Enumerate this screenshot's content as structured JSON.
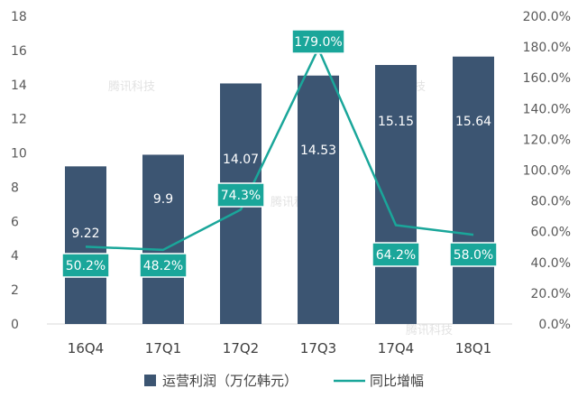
{
  "chart_data": {
    "type": "bar",
    "categories": [
      "16Q4",
      "17Q1",
      "17Q2",
      "17Q3",
      "17Q4",
      "18Q1"
    ],
    "series": [
      {
        "name": "运营利润（万亿韩元）",
        "type": "bar",
        "axis": "left",
        "values": [
          9.22,
          9.9,
          14.07,
          14.53,
          15.15,
          15.64
        ],
        "labels": [
          "9.22",
          "9.9",
          "14.07",
          "14.53",
          "15.15",
          "15.64"
        ],
        "color": "#3c5572"
      },
      {
        "name": "同比增幅",
        "type": "line",
        "axis": "right",
        "values": [
          50.2,
          48.2,
          74.3,
          179.0,
          64.2,
          58.0
        ],
        "labels": [
          "50.2%",
          "48.2%",
          "74.3%",
          "179.0%",
          "64.2%",
          "58.0%"
        ],
        "color": "#1aa69a"
      }
    ],
    "y_left": {
      "range": [
        0,
        18
      ],
      "ticks": [
        "0",
        "2",
        "4",
        "6",
        "8",
        "10",
        "12",
        "14",
        "16",
        "18"
      ]
    },
    "y_right": {
      "range": [
        0,
        200
      ],
      "ticks": [
        "0.0%",
        "20.0%",
        "40.0%",
        "60.0%",
        "80.0%",
        "100.0%",
        "120.0%",
        "140.0%",
        "160.0%",
        "180.0%",
        "200.0%"
      ]
    },
    "grid": false,
    "legend_position": "bottom",
    "watermark": "腾讯科技"
  }
}
